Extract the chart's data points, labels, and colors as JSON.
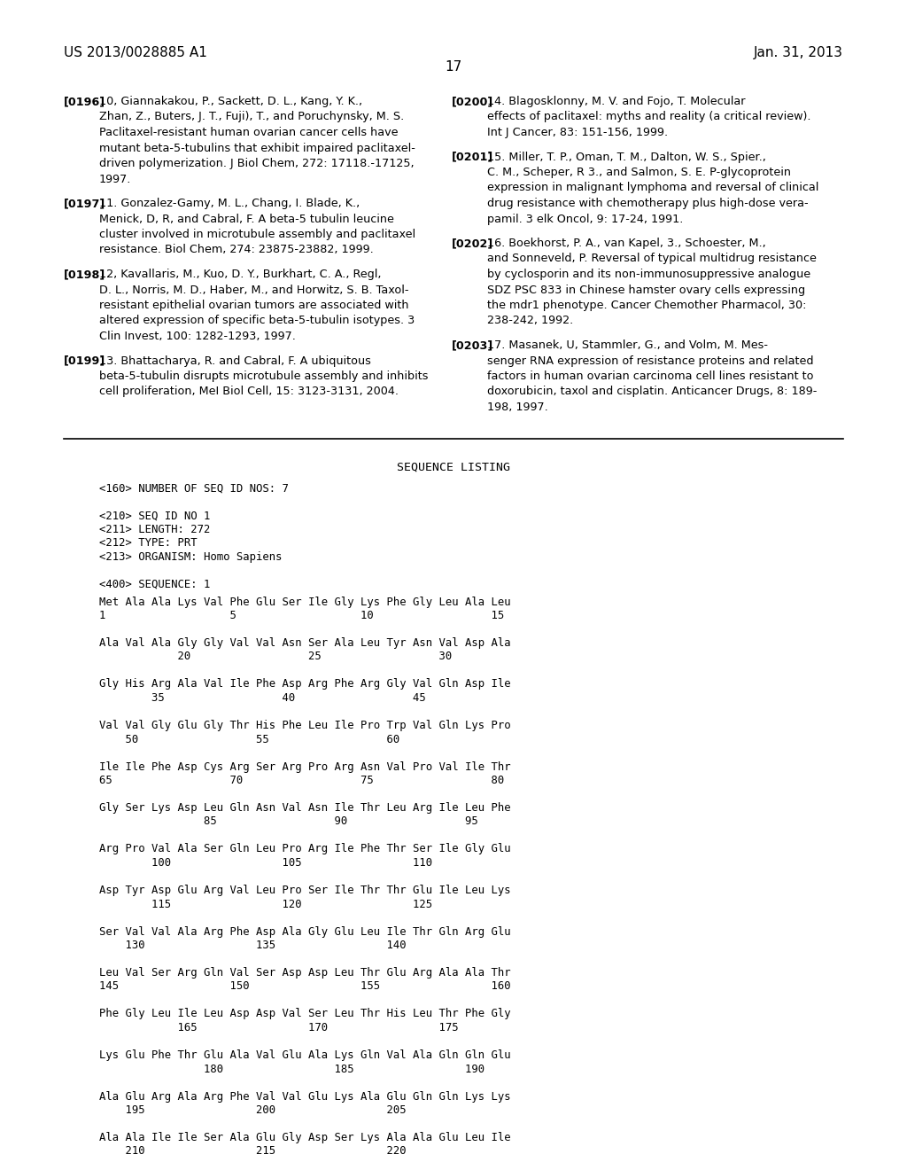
{
  "header_left": "US 2013/0028885 A1",
  "header_right": "Jan. 31, 2013",
  "page_number": "17",
  "bg_color": "#ffffff",
  "text_color": "#000000",
  "left_col_refs": [
    {
      "tag": "[0196]",
      "text": "10, Giannakakou, P., Sackett, D. L., Kang, Y. K.,\n    Zhan, Z., Buters, J. T., Fuji), T., and Poruchynsky, M. S.\n    Paclitaxel-resistant human ovarian cancer cells have\n    mutant beta-5-tubulins that exhibit impaired paclitaxel-\n    driven polymerization. J Biol Chem, 272: 17118.-17125,\n    1997."
    },
    {
      "tag": "[0197]",
      "text": "11. Gonzalez-Gamy, M. L., Chang, I. Blade, K.,\n    Menick, D, R, and Cabral, F. A beta-5 tubulin leucine\n    cluster involved in microtubule assembly and paclitaxel\n    resistance. Biol Chem, 274: 23875-23882, 1999."
    },
    {
      "tag": "[0198]",
      "text": "12, Kavallaris, M., Kuo, D. Y., Burkhart, C. A., Regl,\n    D. L., Norris, M. D., Haber, M., and Horwitz, S. B. Taxol-\n    resistant epithelial ovarian tumors are associated with\n    altered expression of specific beta-5-tubulin isotypes. 3\n    Clin Invest, 100: 1282-1293, 1997."
    },
    {
      "tag": "[0199]",
      "text": "13. Bhattacharya, R. and Cabral, F. A ubiquitous\n    beta-5-tubulin disrupts microtubule assembly and inhibits\n    cell proliferation, MeI Biol Cell, 15: 3123-3131, 2004."
    }
  ],
  "right_col_refs": [
    {
      "tag": "[0200]",
      "text": "14. Blagosklonny, M. V. and Fojo, T. Molecular\n    effects of paclitaxel: myths and reality (a critical review).\n    Int J Cancer, 83: 151-156, 1999."
    },
    {
      "tag": "[0201]",
      "text": "15. Miller, T. P., Oman, T. M., Dalton, W. S., Spier.,\n    C. M., Scheper, R 3., and Salmon, S. E. P-glycoprotein\n    expression in malignant lymphoma and reversal of clinical\n    drug resistance with chemotherapy plus high-dose vera-\n    pamil. 3 elk Oncol, 9: 17-24, 1991."
    },
    {
      "tag": "[0202]",
      "text": "16. Boekhorst, P. A., van Kapel, 3., Schoester, M.,\n    and Sonneveld, P. Reversal of typical multidrug resistance\n    by cyclosporin and its non-immunosuppressive analogue\n    SDZ PSC 833 in Chinese hamster ovary cells expressing\n    the mdr1 phenotype. Cancer Chemother Pharmacol, 30:\n    238-242, 1992."
    },
    {
      "tag": "[0203]",
      "text": "17. Masanek, U, Stammler, G., and Volm, M. Mes-\n    senger RNA expression of resistance proteins and related\n    factors in human ovarian carcinoma cell lines resistant to\n    doxorubicin, taxol and cisplatin. Anticancer Drugs, 8: 189-\n    198, 1997."
    }
  ],
  "sequence_listing_title": "SEQUENCE LISTING",
  "sequence_header": [
    "<160> NUMBER OF SEQ ID NOS: 7",
    "",
    "<210> SEQ ID NO 1",
    "<211> LENGTH: 272",
    "<212> TYPE: PRT",
    "<213> ORGANISM: Homo Sapiens",
    "",
    "<400> SEQUENCE: 1"
  ],
  "sequence_lines": [
    "Met Ala Ala Lys Val Phe Glu Ser Ile Gly Lys Phe Gly Leu Ala Leu",
    "1                   5                   10                  15",
    "",
    "Ala Val Ala Gly Gly Val Val Asn Ser Ala Leu Tyr Asn Val Asp Ala",
    "            20                  25                  30",
    "",
    "Gly His Arg Ala Val Ile Phe Asp Arg Phe Arg Gly Val Gln Asp Ile",
    "        35                  40                  45",
    "",
    "Val Val Gly Glu Gly Thr His Phe Leu Ile Pro Trp Val Gln Lys Pro",
    "    50                  55                  60",
    "",
    "Ile Ile Phe Asp Cys Arg Ser Arg Pro Arg Asn Val Pro Val Ile Thr",
    "65                  70                  75                  80",
    "",
    "Gly Ser Lys Asp Leu Gln Asn Val Asn Ile Thr Leu Arg Ile Leu Phe",
    "                85                  90                  95",
    "",
    "Arg Pro Val Ala Ser Gln Leu Pro Arg Ile Phe Thr Ser Ile Gly Glu",
    "        100                 105                 110",
    "",
    "Asp Tyr Asp Glu Arg Val Leu Pro Ser Ile Thr Thr Glu Ile Leu Lys",
    "        115                 120                 125",
    "",
    "Ser Val Val Ala Arg Phe Asp Ala Gly Glu Leu Ile Thr Gln Arg Glu",
    "    130                 135                 140",
    "",
    "Leu Val Ser Arg Gln Val Ser Asp Asp Leu Thr Glu Arg Ala Ala Thr",
    "145                 150                 155                 160",
    "",
    "Phe Gly Leu Ile Leu Asp Asp Val Ser Leu Thr His Leu Thr Phe Gly",
    "            165                 170                 175",
    "",
    "Lys Glu Phe Thr Glu Ala Val Glu Ala Lys Gln Val Ala Gln Gln Glu",
    "                180                 185                 190",
    "",
    "Ala Glu Arg Ala Arg Phe Val Val Glu Lys Ala Glu Gln Gln Lys Lys",
    "    195                 200                 205",
    "",
    "Ala Ala Ile Ile Ser Ala Glu Gly Asp Ser Lys Ala Ala Glu Leu Ile",
    "    210                 215                 220"
  ]
}
